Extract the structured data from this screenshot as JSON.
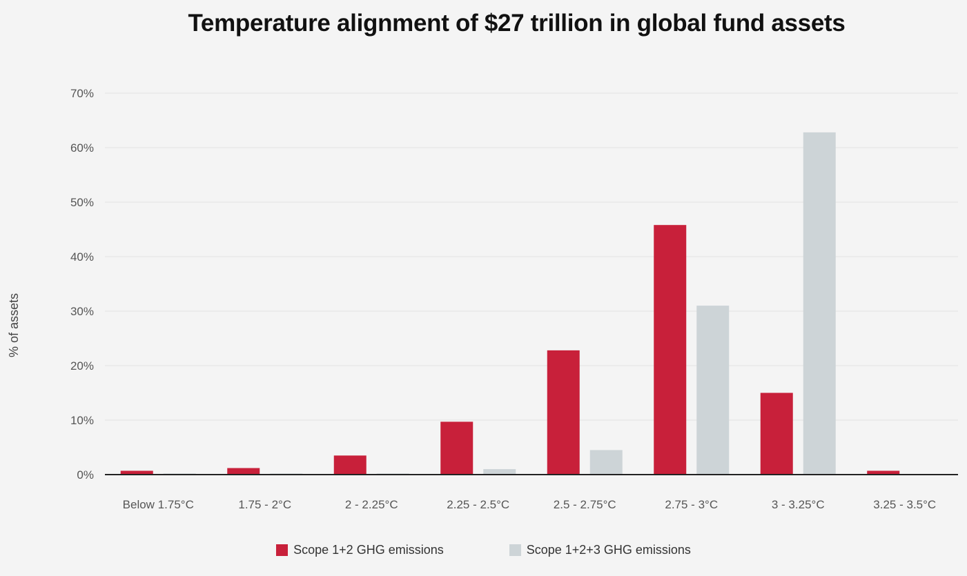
{
  "title": "Temperature alignment of $27 trillion in global fund assets",
  "chart_data": {
    "type": "bar",
    "title": "Temperature alignment of $27 trillion in global fund assets",
    "xlabel": "",
    "ylabel": "% of assets",
    "ylim": [
      0,
      70
    ],
    "yticks": [
      "0%",
      "10%",
      "20%",
      "30%",
      "40%",
      "50%",
      "60%",
      "70%"
    ],
    "grid": true,
    "legend_position": "bottom",
    "categories": [
      "Below 1.75°C",
      "1.75 - 2°C",
      "2 - 2.25°C",
      "2.25 - 2.5°C",
      "2.5 - 2.75°C",
      "2.75 - 3°C",
      "3 - 3.25°C",
      "3.25 - 3.5°C"
    ],
    "series": [
      {
        "name": "Scope 1+2 GHG emissions",
        "color": "#c8203a",
        "values": [
          0.7,
          1.2,
          3.5,
          9.7,
          22.8,
          45.8,
          15.0,
          0.7
        ]
      },
      {
        "name": "Scope 1+2+3 GHG emissions",
        "color": "#cdd4d7",
        "values": [
          0.2,
          0.2,
          0.2,
          1.0,
          4.5,
          31.0,
          62.8,
          0.0
        ]
      }
    ]
  }
}
